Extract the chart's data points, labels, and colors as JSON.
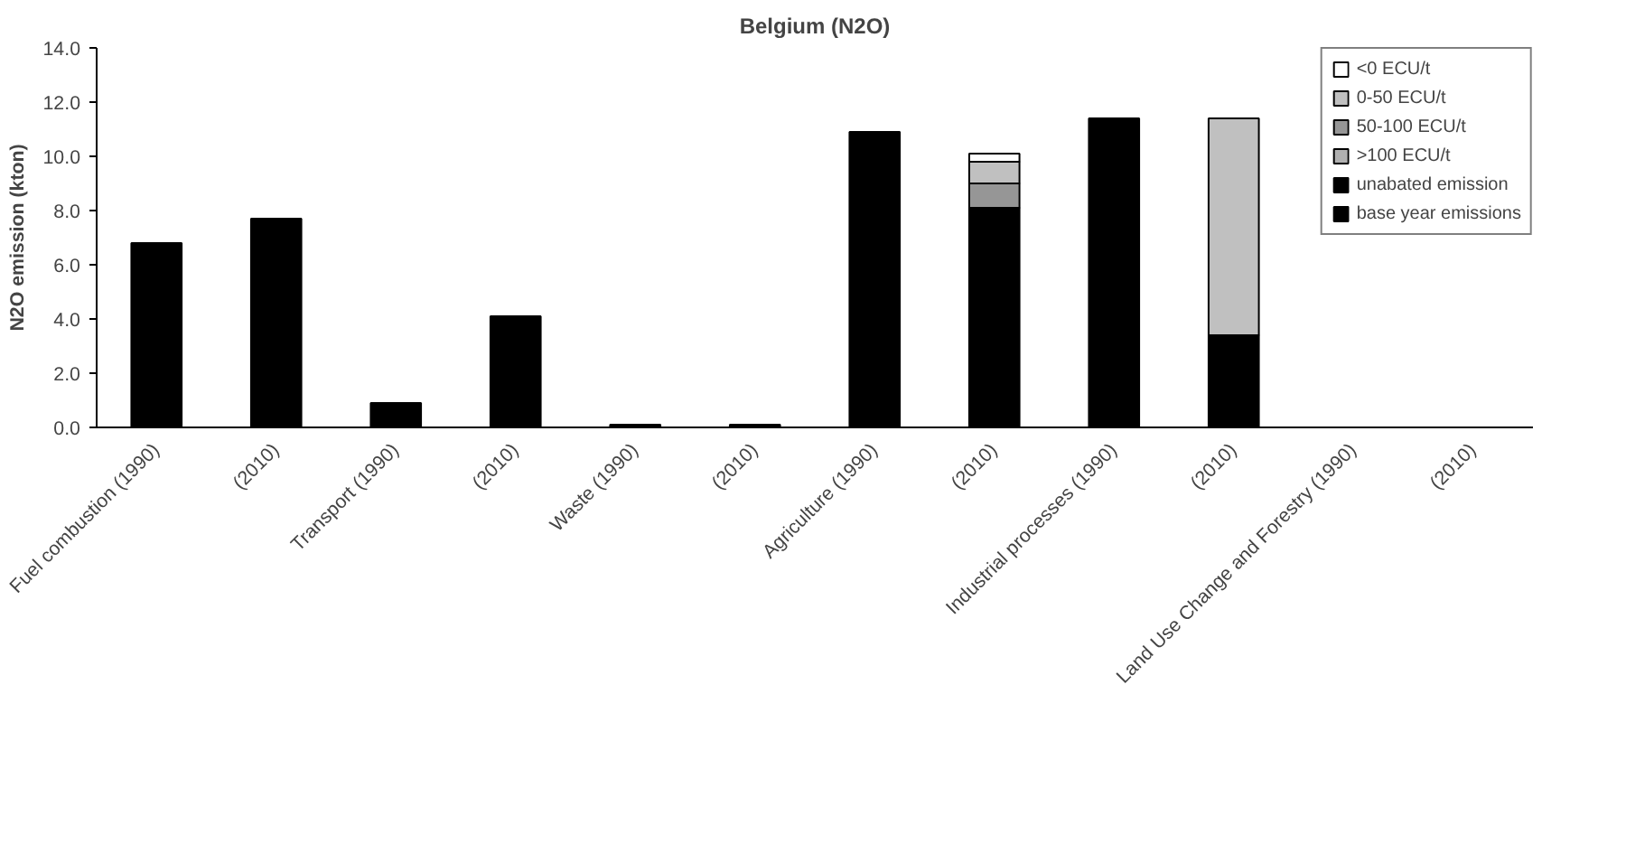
{
  "chart_data": {
    "type": "bar",
    "title": "Belgium (N2O)",
    "ylabel": "N2O emission (kton)",
    "stacked": true,
    "categories": [
      "Fuel combustion (1990)",
      "(2010)",
      "Transport (1990)",
      "(2010)",
      "Waste (1990)",
      "(2010)",
      "Agriculture (1990)",
      "(2010)",
      "Industrial processes (1990)",
      "(2010)",
      "Land Use Change and Forestry (1990)",
      "(2010)"
    ],
    "series": [
      {
        "name": "base year emissions",
        "color": "#000000",
        "values": [
          6.8,
          null,
          0.9,
          null,
          0.1,
          null,
          10.9,
          null,
          11.4,
          null,
          null,
          null
        ]
      },
      {
        "name": "unabated emission",
        "color": "#000000",
        "values": [
          null,
          7.7,
          null,
          4.1,
          null,
          0.1,
          null,
          8.1,
          null,
          3.4,
          null,
          null
        ]
      },
      {
        "name": ">100 ECU/t",
        "color": "#b0b0b0",
        "values": [
          null,
          null,
          null,
          null,
          null,
          null,
          null,
          null,
          null,
          null,
          null,
          null
        ]
      },
      {
        "name": "50-100 ECU/t",
        "color": "#969696",
        "values": [
          null,
          null,
          null,
          null,
          null,
          null,
          null,
          0.9,
          null,
          null,
          null,
          null
        ]
      },
      {
        "name": "0-50 ECU/t",
        "color": "#c0c0c0",
        "values": [
          null,
          null,
          null,
          null,
          null,
          null,
          null,
          0.8,
          null,
          8.0,
          null,
          null
        ]
      },
      {
        "name": "<0 ECU/t",
        "color": "#ffffff",
        "values": [
          null,
          null,
          null,
          null,
          null,
          null,
          null,
          0.3,
          null,
          null,
          null,
          null
        ]
      }
    ],
    "ylim": [
      0,
      14
    ],
    "yticks": [
      {
        "value": 0,
        "label": "0.0"
      },
      {
        "value": 2,
        "label": "2.0"
      },
      {
        "value": 4,
        "label": "4.0"
      },
      {
        "value": 6,
        "label": "6.0"
      },
      {
        "value": 8,
        "label": "8.0"
      },
      {
        "value": 10,
        "label": "10.0"
      },
      {
        "value": 12,
        "label": "12.0"
      },
      {
        "value": 14,
        "label": "14.0"
      }
    ],
    "grid": false,
    "legend": "top right"
  }
}
